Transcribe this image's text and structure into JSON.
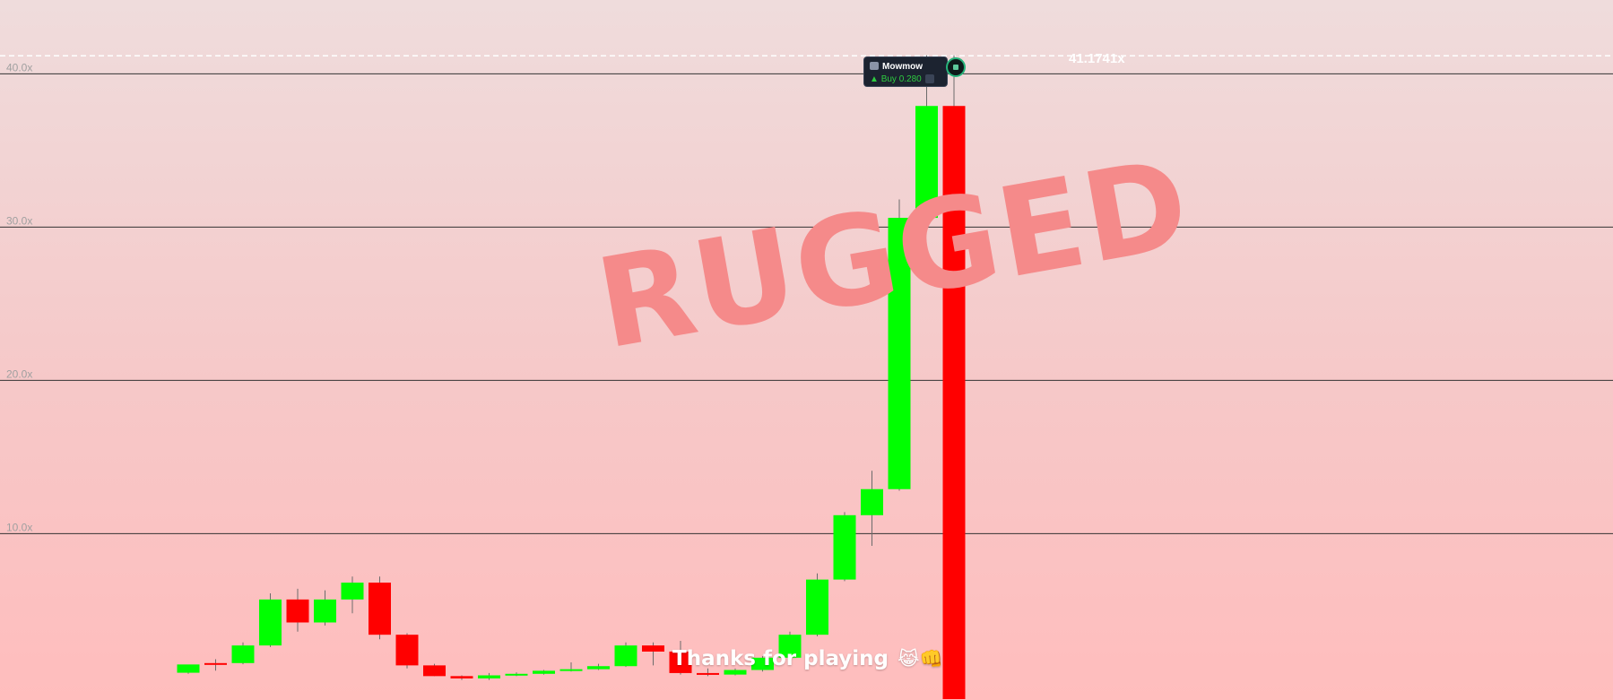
{
  "banner": {
    "status": "RUGGED",
    "footer_text": "Thanks for playing",
    "footer_emoji": "😹👊"
  },
  "peak": {
    "label": "41.1741x",
    "value": 41.1741
  },
  "trade_tooltip": {
    "player": "Mowmow",
    "action": "Buy 0.280",
    "icon": "player-avatar-icon"
  },
  "colors": {
    "up": "#00ff00",
    "down": "#ff0000",
    "grid": "#333333",
    "tick": "#a0a0a0",
    "peak_line": "#ffffff"
  },
  "chart_data": {
    "type": "candlestick",
    "title": "",
    "xlabel": "",
    "ylabel": "",
    "ylim": [
      -0.8,
      44.4
    ],
    "y_ticks": [
      10,
      20,
      30,
      40
    ],
    "y_tick_labels": [
      "10.0x",
      "20.0x",
      "30.0x",
      "40.0x"
    ],
    "grid": true,
    "candles": [
      {
        "o": 0.92,
        "h": 1.3,
        "l": 0.85,
        "c": 1.46
      },
      {
        "o": 1.55,
        "h": 1.8,
        "l": 1.06,
        "c": 1.48
      },
      {
        "o": 1.55,
        "h": 2.9,
        "l": 1.47,
        "c": 2.7
      },
      {
        "o": 2.7,
        "h": 6.1,
        "l": 2.6,
        "c": 5.7
      },
      {
        "o": 5.7,
        "h": 6.4,
        "l": 3.6,
        "c": 4.2
      },
      {
        "o": 4.2,
        "h": 6.3,
        "l": 4.0,
        "c": 5.7
      },
      {
        "o": 5.7,
        "h": 7.2,
        "l": 4.8,
        "c": 6.8
      },
      {
        "o": 6.8,
        "h": 7.2,
        "l": 3.1,
        "c": 3.4
      },
      {
        "o": 3.4,
        "h": 3.5,
        "l": 1.2,
        "c": 1.4
      },
      {
        "o": 1.4,
        "h": 1.5,
        "l": 0.7,
        "c": 0.7
      },
      {
        "o": 0.7,
        "h": 0.75,
        "l": 0.45,
        "c": 0.55
      },
      {
        "o": 0.55,
        "h": 0.9,
        "l": 0.45,
        "c": 0.75
      },
      {
        "o": 0.75,
        "h": 0.95,
        "l": 0.7,
        "c": 0.85
      },
      {
        "o": 0.85,
        "h": 1.1,
        "l": 0.8,
        "c": 1.05
      },
      {
        "o": 1.05,
        "h": 1.6,
        "l": 1.0,
        "c": 1.15
      },
      {
        "o": 1.15,
        "h": 1.5,
        "l": 1.1,
        "c": 1.35
      },
      {
        "o": 1.35,
        "h": 2.9,
        "l": 1.3,
        "c": 2.7
      },
      {
        "o": 2.7,
        "h": 2.9,
        "l": 1.4,
        "c": 2.3
      },
      {
        "o": 2.3,
        "h": 3.0,
        "l": 0.8,
        "c": 0.9
      },
      {
        "o": 0.9,
        "h": 1.2,
        "l": 0.7,
        "c": 0.8
      },
      {
        "o": 0.8,
        "h": 1.2,
        "l": 0.75,
        "c": 1.1
      },
      {
        "o": 1.1,
        "h": 2.0,
        "l": 1.0,
        "c": 1.9
      },
      {
        "o": 1.9,
        "h": 3.6,
        "l": 1.8,
        "c": 3.4
      },
      {
        "o": 3.4,
        "h": 7.4,
        "l": 3.3,
        "c": 7.0
      },
      {
        "o": 7.0,
        "h": 11.4,
        "l": 6.9,
        "c": 11.2
      },
      {
        "o": 11.2,
        "h": 14.1,
        "l": 9.2,
        "c": 12.9
      },
      {
        "o": 12.9,
        "h": 31.8,
        "l": 12.8,
        "c": 30.6
      },
      {
        "o": 30.6,
        "h": 41.2,
        "l": 30.2,
        "c": 37.9
      },
      {
        "o": 37.9,
        "h": 41.2,
        "l": -0.8,
        "c": -0.8
      }
    ]
  }
}
